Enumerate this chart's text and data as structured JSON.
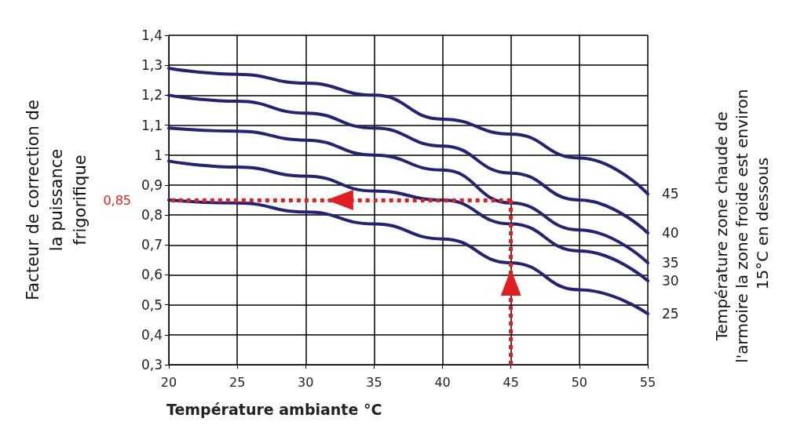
{
  "chart_data": {
    "type": "line",
    "xlabel": "Température ambiante °C",
    "ylabel": "Facteur de correction de la puissance frigorifique",
    "annotations": [
      "Température zone chaude de l'armoire la zone froide est environ 15°C en dessous"
    ],
    "x": [
      20,
      25,
      30,
      35,
      40,
      45,
      50,
      55
    ],
    "series": [
      {
        "name": "45",
        "color": "#232277",
        "values": [
          1.29,
          1.27,
          1.24,
          1.2,
          1.12,
          1.07,
          0.99,
          0.87
        ]
      },
      {
        "name": "40",
        "color": "#232277",
        "values": [
          1.2,
          1.18,
          1.14,
          1.09,
          1.03,
          0.94,
          0.85,
          0.74
        ]
      },
      {
        "name": "35",
        "color": "#232277",
        "values": [
          1.09,
          1.08,
          1.05,
          1.0,
          0.95,
          0.84,
          0.75,
          0.64
        ]
      },
      {
        "name": "30",
        "color": "#232277",
        "values": [
          0.98,
          0.96,
          0.93,
          0.88,
          0.85,
          0.77,
          0.68,
          0.58
        ]
      },
      {
        "name": "25",
        "color": "#232277",
        "values": [
          0.85,
          0.84,
          0.81,
          0.77,
          0.72,
          0.64,
          0.55,
          0.47
        ]
      }
    ],
    "xlim": [
      20,
      55
    ],
    "xticks": [
      20,
      25,
      30,
      35,
      40,
      45,
      50,
      55
    ],
    "ylim": [
      0.3,
      1.4
    ],
    "yticks": [
      {
        "value": 0.3,
        "label": "0,3"
      },
      {
        "value": 0.4,
        "label": "0,4"
      },
      {
        "value": 0.5,
        "label": "0,5"
      },
      {
        "value": 0.6,
        "label": "0,6"
      },
      {
        "value": 0.7,
        "label": "0,7"
      },
      {
        "value": 0.8,
        "label": "0,8"
      },
      {
        "value": 0.9,
        "label": "0,9"
      },
      {
        "value": 1,
        "label": "1"
      },
      {
        "value": 1.1,
        "label": "1,1"
      },
      {
        "value": 1.2,
        "label": "1,2"
      },
      {
        "value": 1.3,
        "label": "1,3"
      },
      {
        "value": 1.4,
        "label": "1,4"
      }
    ],
    "ref_lines": [
      {
        "axis": "y",
        "value": 0.85,
        "label": "0,85",
        "color": "#e02020",
        "line_style": "dotted"
      },
      {
        "axis": "x",
        "value": 45,
        "color": "#e02020",
        "line_style": "dotted"
      }
    ],
    "grid": true,
    "marker": "none",
    "line_style": "solid"
  }
}
